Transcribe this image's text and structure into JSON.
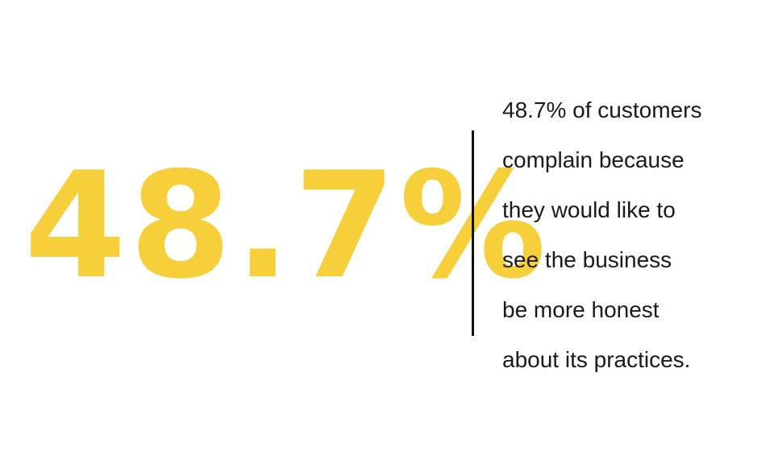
{
  "stat": {
    "value": "48.7%",
    "color": "#f7cf3b"
  },
  "description": {
    "lines": [
      "48.7% of customers",
      "complain because",
      "they would like to",
      "see the business",
      "be more honest",
      "about its practices."
    ]
  }
}
